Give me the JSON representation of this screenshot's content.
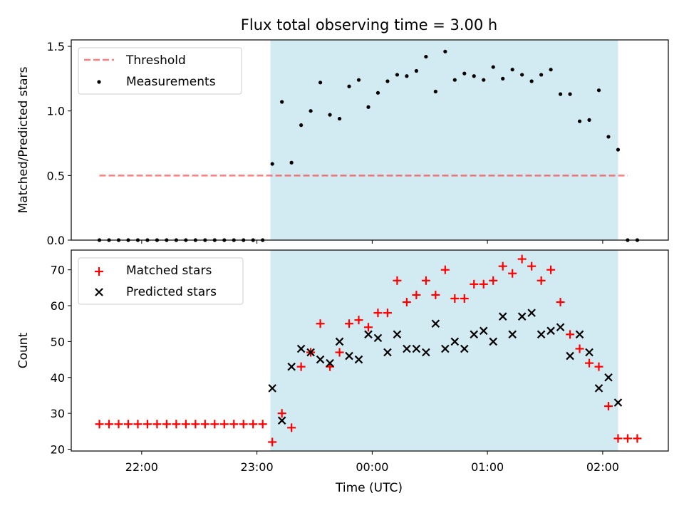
{
  "title": "Flux total observing time = 3.00 h",
  "colors": {
    "band": "#add8e6",
    "threshold": "#ff0000",
    "measurement": "#000000",
    "matched": "#ff0000",
    "predicted": "#000000"
  },
  "chart_data": [
    {
      "type": "scatter",
      "ylabel": "Matched/Predicted stars",
      "ylim": [
        0,
        1.55
      ],
      "yticks": [
        0.0,
        0.5,
        1.0,
        1.5
      ],
      "ytick_labels": [
        "0.0",
        "0.5",
        "1.0",
        "1.5"
      ],
      "xticks": [
        22,
        23,
        24,
        25,
        26
      ],
      "grid": false,
      "legend_position": "upper-left",
      "observing_window": [
        "23:07",
        "02:08"
      ],
      "threshold": {
        "name": "Threshold",
        "y": 0.5,
        "x_range": [
          "21:38",
          "02:13"
        ]
      },
      "series": [
        {
          "name": "Measurements",
          "x": [
            "21:38",
            "21:43",
            "21:48",
            "21:53",
            "21:58",
            "22:03",
            "22:08",
            "22:13",
            "22:18",
            "22:23",
            "22:28",
            "22:33",
            "22:38",
            "22:43",
            "22:48",
            "22:53",
            "22:58",
            "23:03",
            "23:08",
            "23:13",
            "23:18",
            "23:23",
            "23:28",
            "23:33",
            "23:38",
            "23:43",
            "23:48",
            "23:53",
            "23:58",
            "00:03",
            "00:08",
            "00:13",
            "00:18",
            "00:23",
            "00:28",
            "00:33",
            "00:38",
            "00:43",
            "00:48",
            "00:53",
            "00:58",
            "01:03",
            "01:08",
            "01:13",
            "01:18",
            "01:23",
            "01:28",
            "01:33",
            "01:38",
            "01:43",
            "01:48",
            "01:53",
            "01:58",
            "02:03",
            "02:08",
            "02:13",
            "02:18"
          ],
          "y": [
            0,
            0,
            0,
            0,
            0,
            0,
            0,
            0,
            0,
            0,
            0,
            0,
            0,
            0,
            0,
            0,
            0,
            0,
            0.59,
            1.07,
            0.6,
            0.89,
            1.0,
            1.22,
            0.97,
            0.94,
            1.19,
            1.24,
            1.03,
            1.14,
            1.23,
            1.28,
            1.27,
            1.31,
            1.42,
            1.15,
            1.46,
            1.24,
            1.29,
            1.27,
            1.24,
            1.34,
            1.25,
            1.32,
            1.28,
            1.23,
            1.28,
            1.32,
            1.13,
            1.13,
            0.92,
            0.93,
            1.16,
            0.8,
            0.7,
            0,
            0
          ]
        }
      ]
    },
    {
      "type": "scatter",
      "xlabel": "Time (UTC)",
      "ylabel": "Count",
      "ylim": [
        19.5,
        75.5
      ],
      "yticks": [
        20,
        30,
        40,
        50,
        60,
        70
      ],
      "ytick_labels": [
        "20",
        "30",
        "40",
        "50",
        "60",
        "70"
      ],
      "xticks": [
        22,
        23,
        24,
        25,
        26
      ],
      "xtick_labels": [
        "22:00",
        "23:00",
        "00:00",
        "01:00",
        "02:00"
      ],
      "grid": false,
      "legend_position": "upper-left",
      "observing_window": [
        "23:07",
        "02:08"
      ],
      "series": [
        {
          "name": "Matched stars",
          "marker": "+",
          "x": [
            "21:38",
            "21:43",
            "21:48",
            "21:53",
            "21:58",
            "22:03",
            "22:08",
            "22:13",
            "22:18",
            "22:23",
            "22:28",
            "22:33",
            "22:38",
            "22:43",
            "22:48",
            "22:53",
            "22:58",
            "23:03",
            "23:08",
            "23:13",
            "23:18",
            "23:23",
            "23:28",
            "23:33",
            "23:38",
            "23:43",
            "23:48",
            "23:53",
            "23:58",
            "00:03",
            "00:08",
            "00:13",
            "00:18",
            "00:23",
            "00:28",
            "00:33",
            "00:38",
            "00:43",
            "00:48",
            "00:53",
            "00:58",
            "01:03",
            "01:08",
            "01:13",
            "01:18",
            "01:23",
            "01:28",
            "01:33",
            "01:38",
            "01:43",
            "01:48",
            "01:53",
            "01:58",
            "02:03",
            "02:08",
            "02:13",
            "02:18"
          ],
          "y": [
            27,
            27,
            27,
            27,
            27,
            27,
            27,
            27,
            27,
            27,
            27,
            27,
            27,
            27,
            27,
            27,
            27,
            27,
            22,
            30,
            26,
            43,
            47,
            55,
            43,
            47,
            55,
            56,
            54,
            58,
            58,
            67,
            61,
            63,
            67,
            63,
            70,
            62,
            62,
            66,
            66,
            67,
            71,
            69,
            73,
            71,
            67,
            70,
            61,
            52,
            48,
            44,
            43,
            32,
            23,
            23,
            23
          ]
        },
        {
          "name": "Predicted stars",
          "marker": "x",
          "x": [
            "23:08",
            "23:13",
            "23:18",
            "23:23",
            "23:28",
            "23:33",
            "23:38",
            "23:43",
            "23:48",
            "23:53",
            "23:58",
            "00:03",
            "00:08",
            "00:13",
            "00:18",
            "00:23",
            "00:28",
            "00:33",
            "00:38",
            "00:43",
            "00:48",
            "00:53",
            "00:58",
            "01:03",
            "01:08",
            "01:13",
            "01:18",
            "01:23",
            "01:28",
            "01:33",
            "01:38",
            "01:43",
            "01:48",
            "01:53",
            "01:58",
            "02:03",
            "02:08"
          ],
          "y": [
            37,
            28,
            43,
            48,
            47,
            45,
            44,
            50,
            46,
            45,
            52,
            51,
            47,
            52,
            48,
            48,
            47,
            55,
            48,
            50,
            48,
            52,
            53,
            50,
            57,
            52,
            57,
            58,
            52,
            53,
            54,
            46,
            52,
            47,
            37,
            40,
            33
          ]
        }
      ]
    }
  ]
}
